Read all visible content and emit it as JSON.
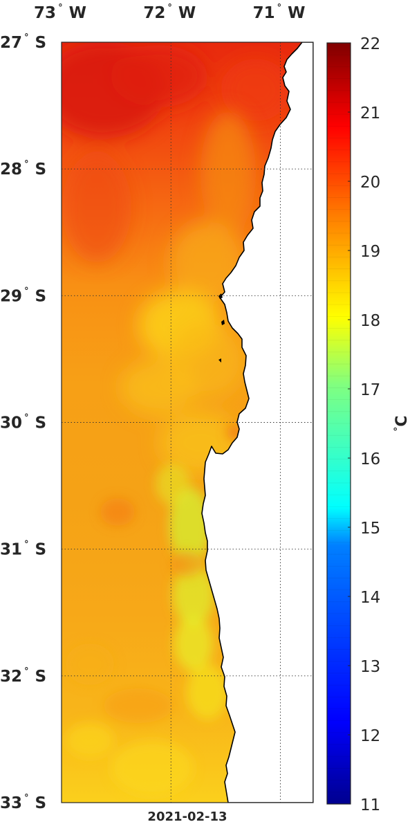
{
  "map": {
    "date": "2021-02-13",
    "longitude_labels": [
      {
        "value": -73,
        "text": "73",
        "deg": "°",
        "hemi": "W"
      },
      {
        "value": -72,
        "text": "72",
        "deg": "°",
        "hemi": "W"
      },
      {
        "value": -71,
        "text": "71",
        "deg": "°",
        "hemi": "W"
      }
    ],
    "latitude_labels": [
      {
        "value": -27,
        "text": "27",
        "deg": "°",
        "hemi": "S"
      },
      {
        "value": -28,
        "text": "28",
        "deg": "°",
        "hemi": "S"
      },
      {
        "value": -29,
        "text": "29",
        "deg": "°",
        "hemi": "S"
      },
      {
        "value": -30,
        "text": "30",
        "deg": "°",
        "hemi": "S"
      },
      {
        "value": -31,
        "text": "31",
        "deg": "°",
        "hemi": "S"
      },
      {
        "value": -32,
        "text": "32",
        "deg": "°",
        "hemi": "S"
      },
      {
        "value": -33,
        "text": "33",
        "deg": "°",
        "hemi": "S"
      }
    ],
    "lon_range": [
      -73,
      -70.7
    ],
    "lat_range": [
      -33,
      -27
    ],
    "grid": true
  },
  "colorbar": {
    "ticks": [
      "22",
      "21",
      "20",
      "19",
      "18",
      "17",
      "16",
      "15",
      "14",
      "13",
      "12",
      "11"
    ],
    "range": [
      11,
      22
    ],
    "unit_deg": "°",
    "unit": "C",
    "colormap": [
      "#00008f",
      "#0000ff",
      "#0080ff",
      "#00ffff",
      "#80ff80",
      "#ffff00",
      "#ff8000",
      "#ff0000",
      "#800000"
    ]
  },
  "sst_field": {
    "description_units": "°C",
    "north_open_ocean": 20.5,
    "center_coastal": 17.8,
    "south_open_ocean": 18.8
  }
}
